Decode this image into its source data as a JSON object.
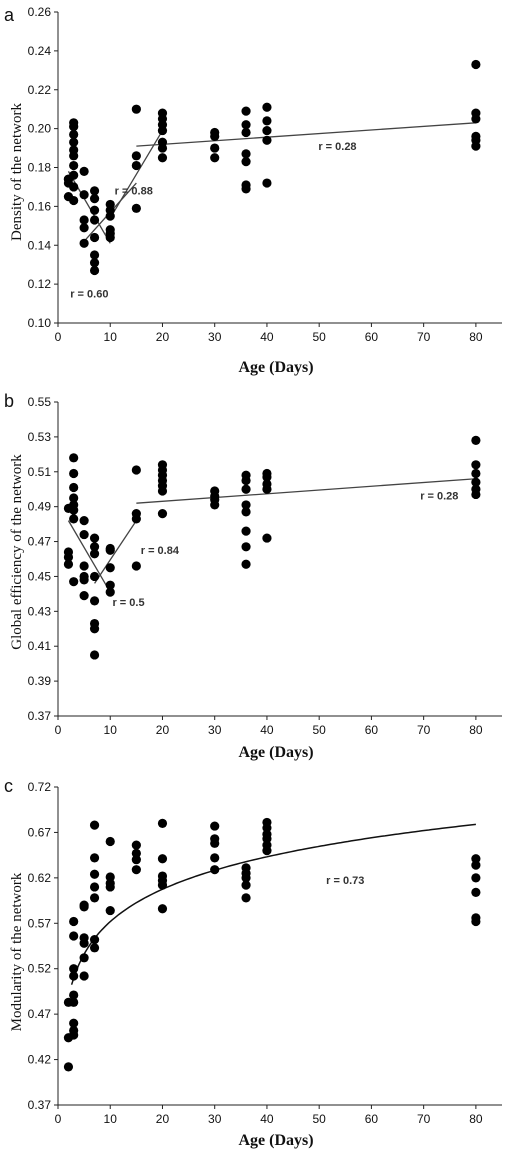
{
  "chart_data": [
    {
      "type": "scatter",
      "panel": "a",
      "ylabel": "Density of the network",
      "xlabel": "Age (Days)",
      "xlim": [
        0,
        85
      ],
      "ylim": [
        0.1,
        0.26
      ],
      "xticks": [
        0,
        10,
        20,
        30,
        40,
        50,
        60,
        70,
        80
      ],
      "yticks": [
        0.1,
        0.12,
        0.14,
        0.16,
        0.18,
        0.2,
        0.22,
        0.24,
        0.26
      ],
      "ytick_decimals": 2,
      "points": [
        [
          2,
          0.165
        ],
        [
          2,
          0.172
        ],
        [
          2,
          0.174
        ],
        [
          2,
          0.174
        ],
        [
          3,
          0.163
        ],
        [
          3,
          0.17
        ],
        [
          3,
          0.176
        ],
        [
          3,
          0.181
        ],
        [
          3,
          0.186
        ],
        [
          3,
          0.189
        ],
        [
          3,
          0.193
        ],
        [
          3,
          0.197
        ],
        [
          3,
          0.201
        ],
        [
          3,
          0.203
        ],
        [
          5,
          0.141
        ],
        [
          5,
          0.149
        ],
        [
          5,
          0.153
        ],
        [
          5,
          0.166
        ],
        [
          5,
          0.178
        ],
        [
          7,
          0.127
        ],
        [
          7,
          0.131
        ],
        [
          7,
          0.135
        ],
        [
          7,
          0.144
        ],
        [
          7,
          0.153
        ],
        [
          7,
          0.158
        ],
        [
          7,
          0.164
        ],
        [
          7,
          0.168
        ],
        [
          10,
          0.144
        ],
        [
          10,
          0.146
        ],
        [
          10,
          0.148
        ],
        [
          10,
          0.155
        ],
        [
          10,
          0.158
        ],
        [
          10,
          0.161
        ],
        [
          15,
          0.159
        ],
        [
          15,
          0.181
        ],
        [
          15,
          0.186
        ],
        [
          15,
          0.21
        ],
        [
          20,
          0.185
        ],
        [
          20,
          0.19
        ],
        [
          20,
          0.193
        ],
        [
          20,
          0.199
        ],
        [
          20,
          0.202
        ],
        [
          20,
          0.205
        ],
        [
          20,
          0.208
        ],
        [
          30,
          0.185
        ],
        [
          30,
          0.19
        ],
        [
          30,
          0.196
        ],
        [
          30,
          0.198
        ],
        [
          36,
          0.169
        ],
        [
          36,
          0.171
        ],
        [
          36,
          0.183
        ],
        [
          36,
          0.187
        ],
        [
          36,
          0.198
        ],
        [
          36,
          0.202
        ],
        [
          36,
          0.209
        ],
        [
          40,
          0.172
        ],
        [
          40,
          0.194
        ],
        [
          40,
          0.199
        ],
        [
          40,
          0.204
        ],
        [
          40,
          0.211
        ],
        [
          80,
          0.191
        ],
        [
          80,
          0.194
        ],
        [
          80,
          0.196
        ],
        [
          80,
          0.205
        ],
        [
          80,
          0.208
        ],
        [
          80,
          0.233
        ]
      ],
      "fits": [
        {
          "type": "line",
          "x": [
            2,
            10
          ],
          "y": [
            0.178,
            0.141
          ]
        },
        {
          "type": "line",
          "x": [
            5,
            15
          ],
          "y": [
            0.142,
            0.172
          ]
        },
        {
          "type": "line",
          "x": [
            10,
            20
          ],
          "y": [
            0.154,
            0.199
          ]
        },
        {
          "type": "line",
          "x": [
            15,
            80
          ],
          "y": [
            0.191,
            0.203
          ]
        }
      ],
      "annotations": [
        {
          "text": "r = 0.60",
          "x": 6,
          "y": 0.113
        },
        {
          "text": "r = 0.88",
          "x": 14.5,
          "y": 0.166
        },
        {
          "text": "r = 0.28",
          "x": 53.5,
          "y": 0.189
        }
      ]
    },
    {
      "type": "scatter",
      "panel": "b",
      "ylabel": "Global efficiency of the network",
      "xlabel": "Age (Days)",
      "xlim": [
        0,
        85
      ],
      "ylim": [
        0.37,
        0.55
      ],
      "xticks": [
        0,
        10,
        20,
        30,
        40,
        50,
        60,
        70,
        80
      ],
      "yticks": [
        0.37,
        0.39,
        0.41,
        0.43,
        0.45,
        0.47,
        0.49,
        0.51,
        0.53,
        0.55
      ],
      "ytick_decimals": 2,
      "points": [
        [
          2,
          0.457
        ],
        [
          2,
          0.461
        ],
        [
          2,
          0.464
        ],
        [
          2,
          0.489
        ],
        [
          3,
          0.447
        ],
        [
          3,
          0.483
        ],
        [
          3,
          0.488
        ],
        [
          3,
          0.491
        ],
        [
          3,
          0.495
        ],
        [
          3,
          0.501
        ],
        [
          3,
          0.509
        ],
        [
          3,
          0.518
        ],
        [
          5,
          0.439
        ],
        [
          5,
          0.448
        ],
        [
          5,
          0.45
        ],
        [
          5,
          0.456
        ],
        [
          5,
          0.474
        ],
        [
          5,
          0.482
        ],
        [
          7,
          0.405
        ],
        [
          7,
          0.42
        ],
        [
          7,
          0.423
        ],
        [
          7,
          0.436
        ],
        [
          7,
          0.45
        ],
        [
          7,
          0.463
        ],
        [
          7,
          0.467
        ],
        [
          7,
          0.472
        ],
        [
          10,
          0.441
        ],
        [
          10,
          0.445
        ],
        [
          10,
          0.455
        ],
        [
          10,
          0.465
        ],
        [
          10,
          0.466
        ],
        [
          15,
          0.456
        ],
        [
          15,
          0.483
        ],
        [
          15,
          0.486
        ],
        [
          15,
          0.511
        ],
        [
          20,
          0.486
        ],
        [
          20,
          0.499
        ],
        [
          20,
          0.502
        ],
        [
          20,
          0.505
        ],
        [
          20,
          0.508
        ],
        [
          20,
          0.511
        ],
        [
          20,
          0.514
        ],
        [
          30,
          0.491
        ],
        [
          30,
          0.494
        ],
        [
          30,
          0.496
        ],
        [
          30,
          0.499
        ],
        [
          36,
          0.457
        ],
        [
          36,
          0.467
        ],
        [
          36,
          0.476
        ],
        [
          36,
          0.487
        ],
        [
          36,
          0.491
        ],
        [
          36,
          0.5
        ],
        [
          36,
          0.505
        ],
        [
          36,
          0.508
        ],
        [
          40,
          0.472
        ],
        [
          40,
          0.5
        ],
        [
          40,
          0.503
        ],
        [
          40,
          0.507
        ],
        [
          40,
          0.509
        ],
        [
          80,
          0.497
        ],
        [
          80,
          0.5
        ],
        [
          80,
          0.504
        ],
        [
          80,
          0.509
        ],
        [
          80,
          0.514
        ],
        [
          80,
          0.528
        ]
      ],
      "fits": [
        {
          "type": "line",
          "x": [
            2,
            10
          ],
          "y": [
            0.482,
            0.441
          ]
        },
        {
          "type": "line",
          "x": [
            7,
            15
          ],
          "y": [
            0.446,
            0.482
          ]
        },
        {
          "type": "line",
          "x": [
            15,
            80
          ],
          "y": [
            0.492,
            0.506
          ]
        }
      ],
      "annotations": [
        {
          "text": "r = 0.5",
          "x": 13.5,
          "y": 0.433
        },
        {
          "text": "r = 0.84",
          "x": 19.5,
          "y": 0.463
        },
        {
          "text": "r = 0.28",
          "x": 73,
          "y": 0.494
        }
      ]
    },
    {
      "type": "scatter",
      "panel": "c",
      "ylabel": "Modularity of the network",
      "xlabel": "Age (Days)",
      "xlim": [
        0,
        85
      ],
      "ylim": [
        0.37,
        0.72
      ],
      "xticks": [
        0,
        10,
        20,
        30,
        40,
        50,
        60,
        70,
        80
      ],
      "yticks": [
        0.37,
        0.42,
        0.47,
        0.52,
        0.57,
        0.62,
        0.67,
        0.72
      ],
      "ytick_decimals": 2,
      "points": [
        [
          2,
          0.412
        ],
        [
          2,
          0.444
        ],
        [
          2,
          0.483
        ],
        [
          3,
          0.447
        ],
        [
          3,
          0.452
        ],
        [
          3,
          0.46
        ],
        [
          3,
          0.483
        ],
        [
          3,
          0.491
        ],
        [
          3,
          0.512
        ],
        [
          3,
          0.52
        ],
        [
          3,
          0.556
        ],
        [
          3,
          0.572
        ],
        [
          5,
          0.512
        ],
        [
          5,
          0.532
        ],
        [
          5,
          0.548
        ],
        [
          5,
          0.554
        ],
        [
          5,
          0.588
        ],
        [
          5,
          0.59
        ],
        [
          7,
          0.543
        ],
        [
          7,
          0.552
        ],
        [
          7,
          0.598
        ],
        [
          7,
          0.61
        ],
        [
          7,
          0.624
        ],
        [
          7,
          0.642
        ],
        [
          7,
          0.678
        ],
        [
          10,
          0.584
        ],
        [
          10,
          0.61
        ],
        [
          10,
          0.614
        ],
        [
          10,
          0.621
        ],
        [
          10,
          0.66
        ],
        [
          15,
          0.629
        ],
        [
          15,
          0.64
        ],
        [
          15,
          0.647
        ],
        [
          15,
          0.656
        ],
        [
          20,
          0.586
        ],
        [
          20,
          0.612
        ],
        [
          20,
          0.617
        ],
        [
          20,
          0.622
        ],
        [
          20,
          0.641
        ],
        [
          20,
          0.68
        ],
        [
          30,
          0.629
        ],
        [
          30,
          0.642
        ],
        [
          30,
          0.658
        ],
        [
          30,
          0.663
        ],
        [
          30,
          0.677
        ],
        [
          36,
          0.598
        ],
        [
          36,
          0.612
        ],
        [
          36,
          0.62
        ],
        [
          36,
          0.625
        ],
        [
          36,
          0.631
        ],
        [
          40,
          0.65
        ],
        [
          40,
          0.656
        ],
        [
          40,
          0.663
        ],
        [
          40,
          0.668
        ],
        [
          40,
          0.675
        ],
        [
          40,
          0.681
        ],
        [
          80,
          0.572
        ],
        [
          80,
          0.576
        ],
        [
          80,
          0.604
        ],
        [
          80,
          0.62
        ],
        [
          80,
          0.634
        ],
        [
          80,
          0.641
        ]
      ],
      "fits": [
        {
          "type": "log",
          "a": 0.4532,
          "b": 0.0515,
          "xrange": [
            2.6,
            80
          ]
        }
      ],
      "annotations": [
        {
          "text": "r = 0.73",
          "x": 55,
          "y": 0.613
        }
      ]
    }
  ],
  "panels": {
    "a": {
      "letter": "a"
    },
    "b": {
      "letter": "b"
    },
    "c": {
      "letter": "c"
    }
  }
}
